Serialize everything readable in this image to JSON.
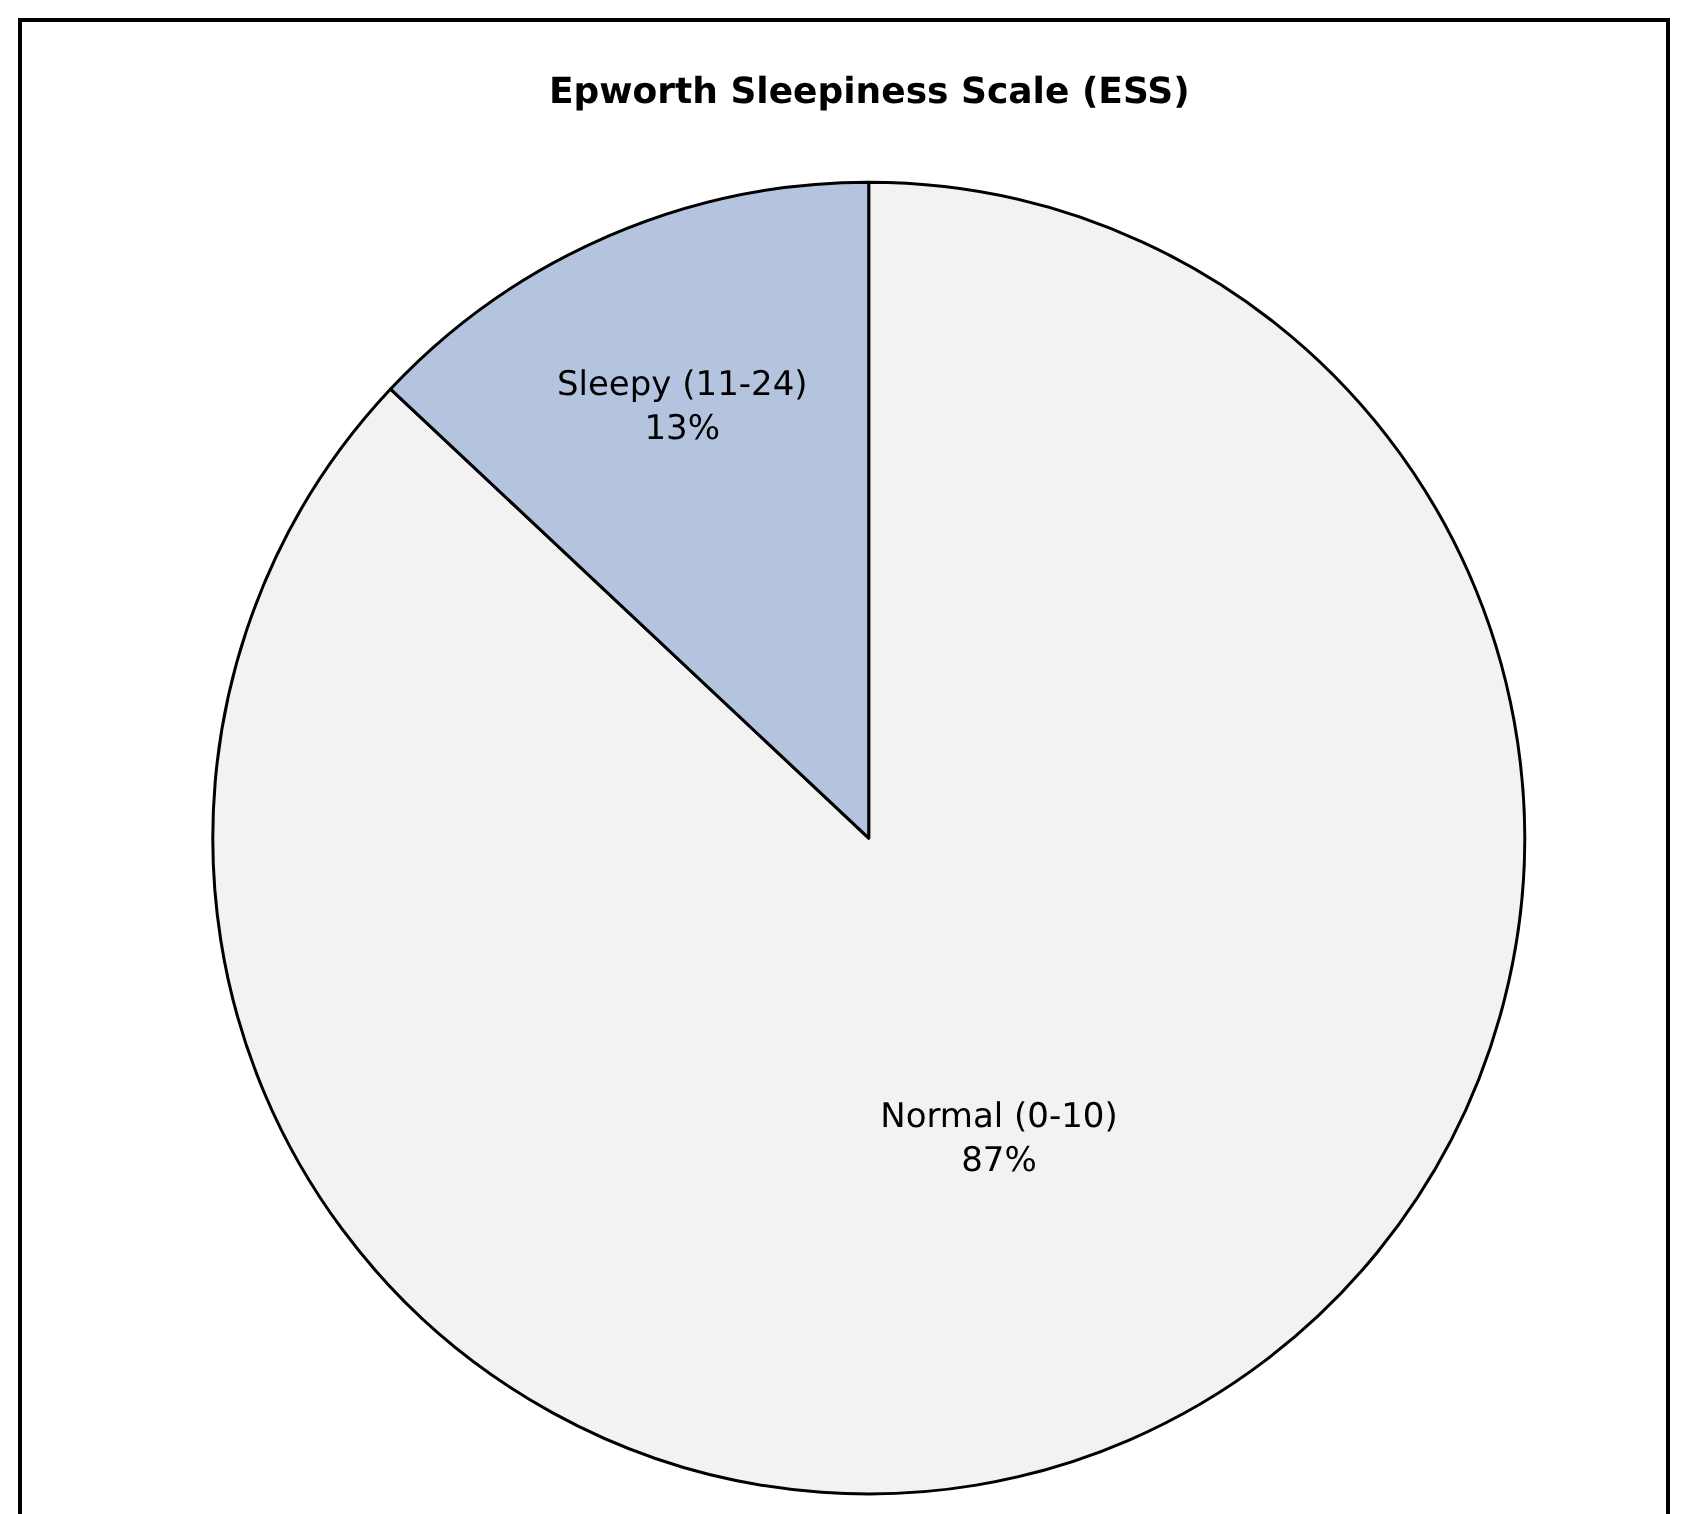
{
  "chart_data": {
    "type": "pie",
    "title": "Epworth Sleepiness Scale (ESS)",
    "categories": [
      "Normal (0-10)",
      "Sleepy (11-24)"
    ],
    "values": [
      87,
      13
    ],
    "value_labels": [
      "87%",
      "13%"
    ],
    "colors": [
      "#f2f2f2",
      "#b4c3de"
    ],
    "legend": false
  }
}
